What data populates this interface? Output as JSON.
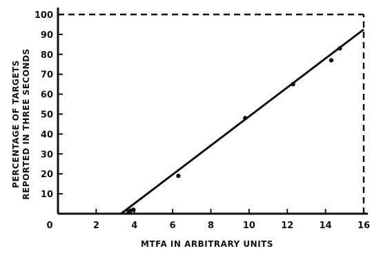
{
  "chart_data": {
    "type": "scatter",
    "title": "",
    "xlabel": "MTFA IN ARBITRARY UNITS",
    "ylabel_line1": "PERCENTAGE OF TARGETS",
    "ylabel_line2": "REPORTED IN THREE SECONDS",
    "xlim": [
      0,
      16
    ],
    "ylim": [
      0,
      100
    ],
    "x_ticks": [
      0,
      2,
      4,
      6,
      8,
      10,
      12,
      14,
      16
    ],
    "y_ticks": [
      10,
      20,
      30,
      40,
      50,
      60,
      70,
      80,
      90,
      100
    ],
    "grid": false,
    "series": [
      {
        "points": [
          {
            "x": 3.7,
            "y": 1
          },
          {
            "x": 3.8,
            "y": 1.5
          },
          {
            "x": 3.95,
            "y": 2
          },
          {
            "x": 6.3,
            "y": 19
          },
          {
            "x": 9.8,
            "y": 48
          },
          {
            "x": 12.3,
            "y": 65
          },
          {
            "x": 14.3,
            "y": 77
          },
          {
            "x": 14.75,
            "y": 83
          }
        ]
      }
    ],
    "fit_line": {
      "x": [
        3.3,
        16
      ],
      "y": [
        0,
        92.5
      ]
    },
    "reference_line": {
      "x": [
        0,
        16
      ],
      "y": [
        100,
        100
      ],
      "style": "dashed"
    },
    "reference_vertical": {
      "x": [
        16,
        16
      ],
      "y": [
        0,
        100
      ],
      "style": "dashed"
    }
  }
}
